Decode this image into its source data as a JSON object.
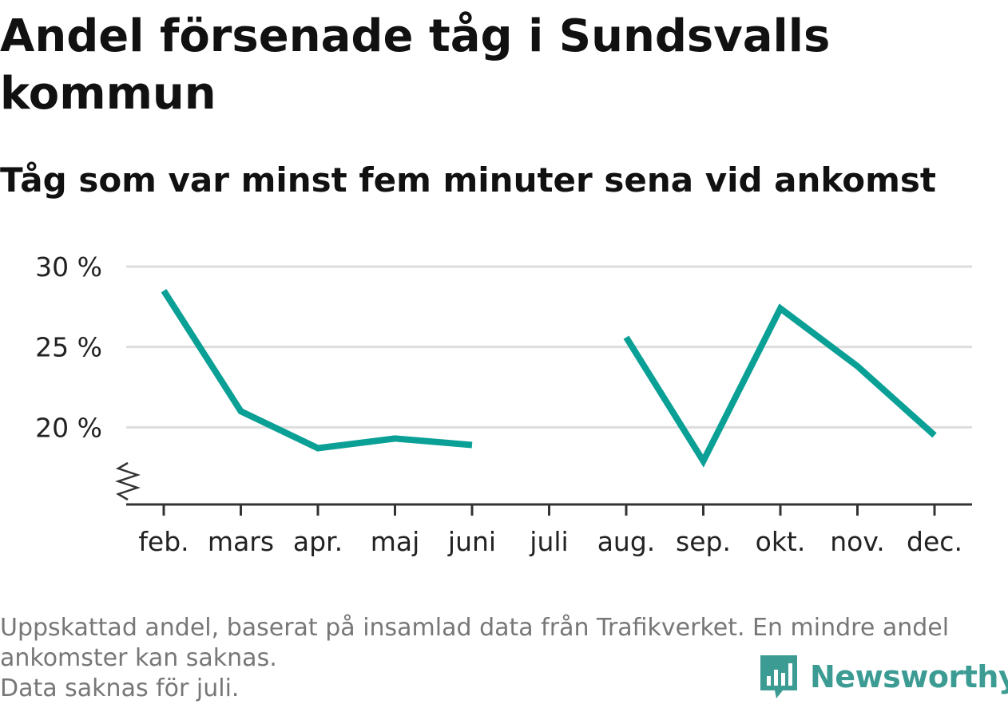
{
  "title": "Andel försenade tåg i Sundsvalls kommun",
  "subtitle": "Tåg som var minst fem minuter sena vid ankomst",
  "colors": {
    "line": "#0aa096",
    "grid": "#dddddd",
    "axis": "#333333",
    "logo": "#3c9c93"
  },
  "chart_data": {
    "type": "line",
    "categories": [
      "feb.",
      "mars",
      "apr.",
      "maj",
      "juni",
      "juli",
      "aug.",
      "sep.",
      "okt.",
      "nov.",
      "dec."
    ],
    "series": [
      {
        "values": [
          28.5,
          21.0,
          18.7,
          19.3,
          18.9,
          null,
          25.6,
          17.9,
          27.4,
          23.8,
          19.5
        ]
      }
    ],
    "y_ticks": [
      {
        "value": 20,
        "label": "20 %"
      },
      {
        "value": 25,
        "label": "25 %"
      },
      {
        "value": 30,
        "label": "30 %"
      }
    ],
    "ylim": [
      15.2,
      30
    ],
    "y_axis_break": true,
    "grid": true,
    "legend": "none"
  },
  "footnote": {
    "line1": "Uppskattad andel, baserat på insamlad data från Trafikverket. En mindre andel ankomster kan saknas.",
    "line2": "Data saknas för juli."
  },
  "logo": {
    "text": "Newsworthy",
    "icon": "newsworthy-chart-bubble-icon"
  }
}
